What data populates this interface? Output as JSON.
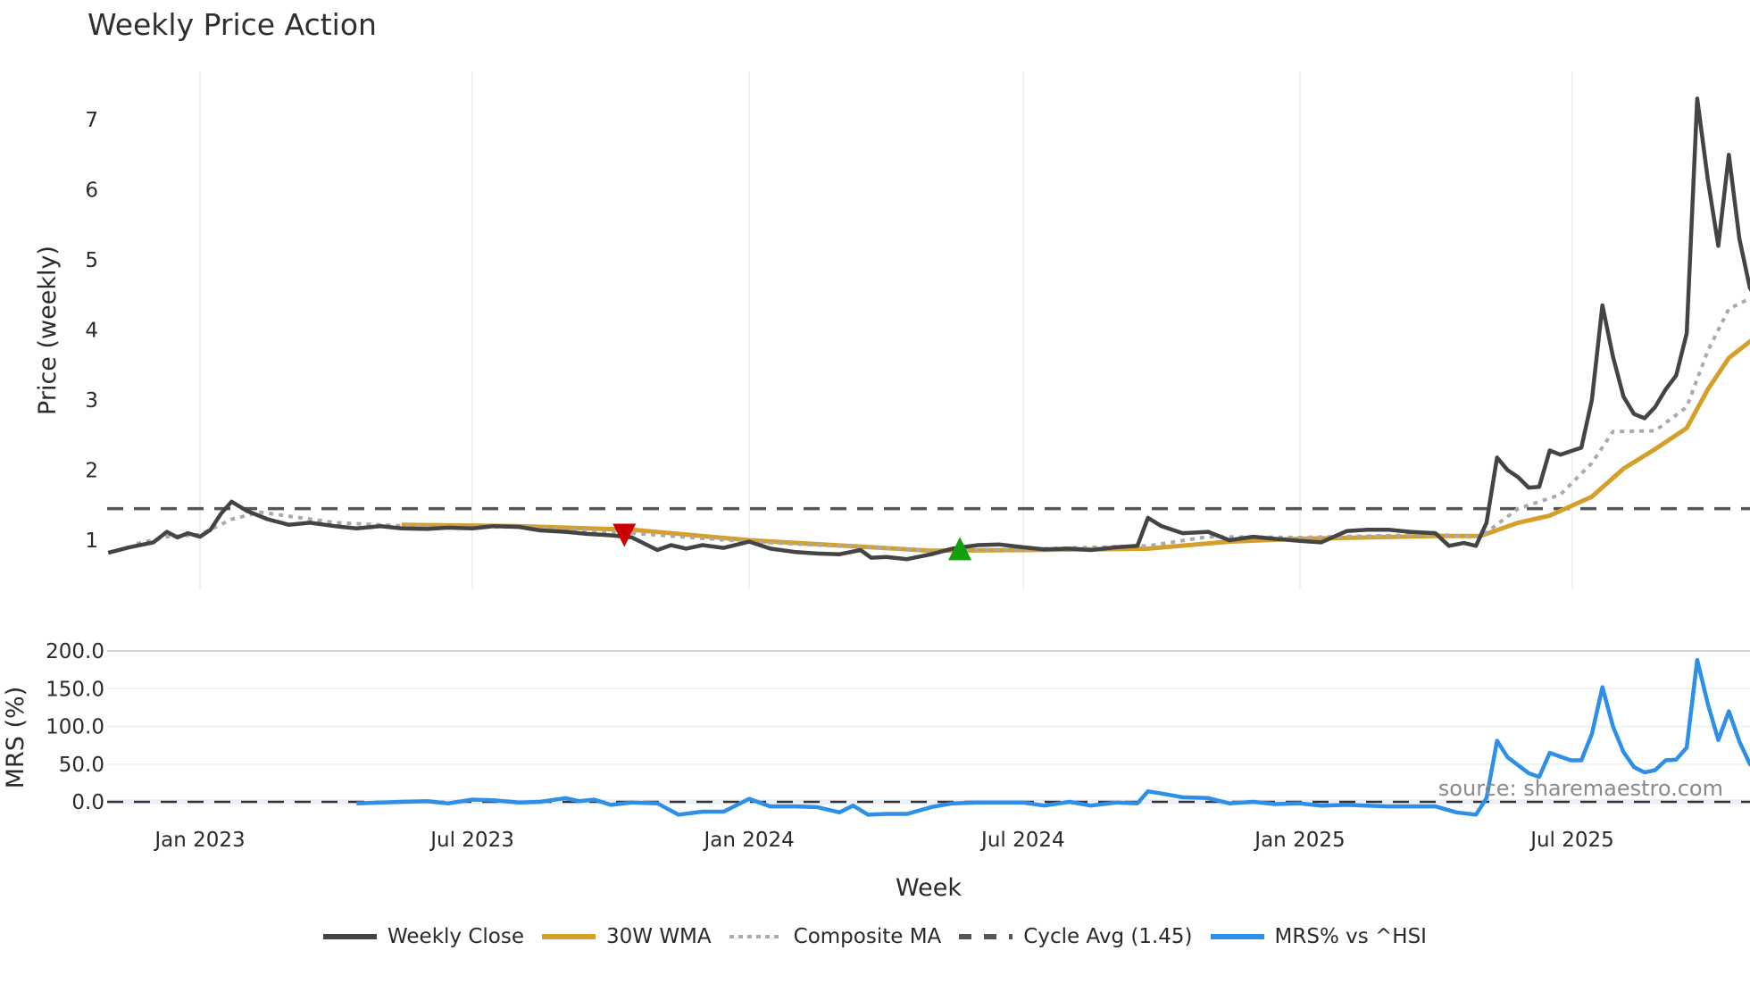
{
  "title": "Weekly Price Action",
  "chart_data": [
    {
      "type": "line",
      "panel": "price",
      "title": "Weekly Price Action",
      "xlabel": "Week",
      "ylabel": "Price (weekly)",
      "ylim": [
        0.3,
        7.7
      ],
      "yticks": [
        1,
        2,
        3,
        4,
        5,
        6,
        7
      ],
      "xticks": [
        "Jan 2023",
        "Jul 2023",
        "Jan 2024",
        "Jul 2024",
        "Jan 2025",
        "Jul 2025"
      ],
      "grid": "vertical only",
      "series": [
        {
          "name": "Weekly Close",
          "color": "#444444",
          "style": "solid",
          "points": [
            [
              "2022-11-01",
              0.82
            ],
            [
              "2022-11-15",
              0.9
            ],
            [
              "2022-12-01",
              0.97
            ],
            [
              "2022-12-10",
              1.12
            ],
            [
              "2022-12-17",
              1.04
            ],
            [
              "2022-12-24",
              1.1
            ],
            [
              "2023-01-01",
              1.05
            ],
            [
              "2023-01-08",
              1.15
            ],
            [
              "2023-01-15",
              1.38
            ],
            [
              "2023-01-22",
              1.55
            ],
            [
              "2023-02-01",
              1.42
            ],
            [
              "2023-02-15",
              1.3
            ],
            [
              "2023-03-01",
              1.22
            ],
            [
              "2023-03-15",
              1.25
            ],
            [
              "2023-04-01",
              1.2
            ],
            [
              "2023-04-15",
              1.17
            ],
            [
              "2023-05-01",
              1.2
            ],
            [
              "2023-05-15",
              1.17
            ],
            [
              "2023-06-01",
              1.16
            ],
            [
              "2023-06-15",
              1.18
            ],
            [
              "2023-07-01",
              1.17
            ],
            [
              "2023-07-15",
              1.2
            ],
            [
              "2023-08-01",
              1.19
            ],
            [
              "2023-08-15",
              1.14
            ],
            [
              "2023-09-01",
              1.12
            ],
            [
              "2023-09-15",
              1.09
            ],
            [
              "2023-10-01",
              1.07
            ],
            [
              "2023-10-15",
              1.04
            ],
            [
              "2023-11-01",
              0.86
            ],
            [
              "2023-11-10",
              0.93
            ],
            [
              "2023-11-20",
              0.88
            ],
            [
              "2023-12-01",
              0.93
            ],
            [
              "2023-12-15",
              0.89
            ],
            [
              "2024-01-01",
              0.98
            ],
            [
              "2024-01-15",
              0.88
            ],
            [
              "2024-02-01",
              0.83
            ],
            [
              "2024-02-15",
              0.81
            ],
            [
              "2024-03-01",
              0.8
            ],
            [
              "2024-03-15",
              0.86
            ],
            [
              "2024-03-22",
              0.75
            ],
            [
              "2024-04-01",
              0.76
            ],
            [
              "2024-04-15",
              0.73
            ],
            [
              "2024-05-01",
              0.8
            ],
            [
              "2024-05-15",
              0.88
            ],
            [
              "2024-06-01",
              0.93
            ],
            [
              "2024-06-15",
              0.94
            ],
            [
              "2024-07-01",
              0.9
            ],
            [
              "2024-07-15",
              0.87
            ],
            [
              "2024-08-01",
              0.88
            ],
            [
              "2024-08-15",
              0.86
            ],
            [
              "2024-09-01",
              0.9
            ],
            [
              "2024-09-15",
              0.92
            ],
            [
              "2024-09-22",
              1.32
            ],
            [
              "2024-10-01",
              1.2
            ],
            [
              "2024-10-15",
              1.1
            ],
            [
              "2024-11-01",
              1.12
            ],
            [
              "2024-11-15",
              1.0
            ],
            [
              "2024-12-01",
              1.05
            ],
            [
              "2024-12-15",
              1.02
            ],
            [
              "2025-01-01",
              0.99
            ],
            [
              "2025-01-15",
              0.97
            ],
            [
              "2025-02-01",
              1.13
            ],
            [
              "2025-02-15",
              1.15
            ],
            [
              "2025-03-01",
              1.15
            ],
            [
              "2025-03-15",
              1.12
            ],
            [
              "2025-04-01",
              1.1
            ],
            [
              "2025-04-10",
              0.92
            ],
            [
              "2025-04-20",
              0.96
            ],
            [
              "2025-04-28",
              0.92
            ],
            [
              "2025-05-05",
              1.25
            ],
            [
              "2025-05-12",
              2.18
            ],
            [
              "2025-05-19",
              2.0
            ],
            [
              "2025-05-26",
              1.9
            ],
            [
              "2025-06-02",
              1.75
            ],
            [
              "2025-06-09",
              1.76
            ],
            [
              "2025-06-16",
              2.28
            ],
            [
              "2025-06-23",
              2.22
            ],
            [
              "2025-06-30",
              2.27
            ],
            [
              "2025-07-07",
              2.32
            ],
            [
              "2025-07-14",
              3.0
            ],
            [
              "2025-07-21",
              4.35
            ],
            [
              "2025-07-28",
              3.62
            ],
            [
              "2025-08-04",
              3.05
            ],
            [
              "2025-08-11",
              2.8
            ],
            [
              "2025-08-18",
              2.74
            ],
            [
              "2025-08-25",
              2.9
            ],
            [
              "2025-09-01",
              3.15
            ],
            [
              "2025-09-08",
              3.35
            ],
            [
              "2025-09-15",
              3.95
            ],
            [
              "2025-09-22",
              7.3
            ],
            [
              "2025-09-29",
              6.15
            ],
            [
              "2025-10-06",
              5.2
            ],
            [
              "2025-10-13",
              6.5
            ],
            [
              "2025-10-20",
              5.3
            ],
            [
              "2025-10-27",
              4.6
            ],
            [
              "2025-11-03",
              4.35
            ]
          ]
        },
        {
          "name": "30W WMA",
          "color": "#D4A02A",
          "style": "solid",
          "points": [
            [
              "2023-05-15",
              1.22
            ],
            [
              "2023-08-01",
              1.2
            ],
            [
              "2023-10-15",
              1.15
            ],
            [
              "2024-01-01",
              1.0
            ],
            [
              "2024-05-01",
              0.85
            ],
            [
              "2024-07-01",
              0.86
            ],
            [
              "2024-09-22",
              0.88
            ],
            [
              "2024-11-15",
              0.98
            ],
            [
              "2025-01-01",
              1.02
            ],
            [
              "2025-04-01",
              1.06
            ],
            [
              "2025-05-01",
              1.06
            ],
            [
              "2025-05-26",
              1.25
            ],
            [
              "2025-06-16",
              1.35
            ],
            [
              "2025-07-14",
              1.62
            ],
            [
              "2025-08-04",
              2.02
            ],
            [
              "2025-08-25",
              2.3
            ],
            [
              "2025-09-15",
              2.6
            ],
            [
              "2025-09-29",
              3.15
            ],
            [
              "2025-10-13",
              3.6
            ],
            [
              "2025-11-03",
              3.95
            ]
          ]
        },
        {
          "name": "Composite MA",
          "color": "#AAAAAA",
          "style": "dotted",
          "points": [
            [
              "2022-11-20",
              0.95
            ],
            [
              "2022-12-10",
              1.05
            ],
            [
              "2023-01-01",
              1.08
            ],
            [
              "2023-01-22",
              1.3
            ],
            [
              "2023-02-10",
              1.4
            ],
            [
              "2023-04-01",
              1.25
            ],
            [
              "2023-06-01",
              1.19
            ],
            [
              "2023-08-01",
              1.19
            ],
            [
              "2023-10-15",
              1.1
            ],
            [
              "2024-01-01",
              0.98
            ],
            [
              "2024-05-01",
              0.85
            ],
            [
              "2024-07-01",
              0.87
            ],
            [
              "2024-09-22",
              0.92
            ],
            [
              "2024-11-01",
              1.05
            ],
            [
              "2025-01-01",
              1.04
            ],
            [
              "2025-04-01",
              1.08
            ],
            [
              "2025-05-01",
              1.05
            ],
            [
              "2025-05-26",
              1.45
            ],
            [
              "2025-06-23",
              1.65
            ],
            [
              "2025-07-14",
              2.1
            ],
            [
              "2025-07-28",
              2.55
            ],
            [
              "2025-08-25",
              2.56
            ],
            [
              "2025-09-15",
              2.9
            ],
            [
              "2025-09-29",
              3.7
            ],
            [
              "2025-10-13",
              4.3
            ],
            [
              "2025-10-27",
              4.45
            ],
            [
              "2025-11-03",
              4.35
            ]
          ]
        },
        {
          "name": "Cycle Avg (1.45)",
          "color": "#555555",
          "style": "dashed",
          "constant": 1.45
        }
      ],
      "markers": [
        {
          "type": "sell",
          "shape": "triangle-down",
          "color": "#CC0000",
          "date": "2023-10-10",
          "value": 1.07
        },
        {
          "type": "buy",
          "shape": "triangle-up",
          "color": "#12A012",
          "date": "2024-05-20",
          "value": 0.88
        }
      ]
    },
    {
      "type": "line",
      "panel": "mrs",
      "ylabel": "MRS (%)",
      "ylim": [
        -25,
        205
      ],
      "yticks": [
        "0.0",
        "50.0",
        "100.0",
        "150.0",
        "200.0"
      ],
      "grid": "horizontal",
      "reference_line": {
        "value": 0,
        "style": "dashed",
        "color": "#333333"
      },
      "series": [
        {
          "name": "MRS% vs ^HSI",
          "color": "#2E8FE8",
          "style": "solid",
          "points": [
            [
              "2023-04-15",
              -2
            ],
            [
              "2023-05-15",
              0
            ],
            [
              "2023-06-01",
              1
            ],
            [
              "2023-06-15",
              -2
            ],
            [
              "2023-07-01",
              3
            ],
            [
              "2023-07-15",
              2
            ],
            [
              "2023-08-01",
              -1
            ],
            [
              "2023-08-15",
              0
            ],
            [
              "2023-09-01",
              5
            ],
            [
              "2023-09-10",
              1
            ],
            [
              "2023-09-20",
              3
            ],
            [
              "2023-10-01",
              -4
            ],
            [
              "2023-10-15",
              -1
            ],
            [
              "2023-11-01",
              -2
            ],
            [
              "2023-11-15",
              -17
            ],
            [
              "2023-12-01",
              -13
            ],
            [
              "2023-12-15",
              -13
            ],
            [
              "2024-01-01",
              4
            ],
            [
              "2024-01-15",
              -6
            ],
            [
              "2024-02-01",
              -6
            ],
            [
              "2024-02-15",
              -7
            ],
            [
              "2024-03-01",
              -14
            ],
            [
              "2024-03-10",
              -5
            ],
            [
              "2024-03-20",
              -17
            ],
            [
              "2024-04-01",
              -16
            ],
            [
              "2024-04-15",
              -16
            ],
            [
              "2024-05-01",
              -7
            ],
            [
              "2024-05-15",
              -2
            ],
            [
              "2024-06-01",
              -1
            ],
            [
              "2024-07-01",
              -1
            ],
            [
              "2024-07-15",
              -5
            ],
            [
              "2024-08-01",
              0
            ],
            [
              "2024-08-15",
              -5
            ],
            [
              "2024-09-01",
              -1
            ],
            [
              "2024-09-15",
              -2
            ],
            [
              "2024-09-22",
              14
            ],
            [
              "2024-10-01",
              11
            ],
            [
              "2024-10-15",
              6
            ],
            [
              "2024-11-01",
              5
            ],
            [
              "2024-11-15",
              -2
            ],
            [
              "2024-12-01",
              0
            ],
            [
              "2024-12-15",
              -3
            ],
            [
              "2025-01-01",
              -2
            ],
            [
              "2025-01-15",
              -5
            ],
            [
              "2025-02-01",
              -4
            ],
            [
              "2025-03-01",
              -6
            ],
            [
              "2025-04-01",
              -6
            ],
            [
              "2025-04-15",
              -14
            ],
            [
              "2025-04-28",
              -17
            ],
            [
              "2025-05-05",
              5
            ],
            [
              "2025-05-12",
              81
            ],
            [
              "2025-05-19",
              59
            ],
            [
              "2025-06-02",
              38
            ],
            [
              "2025-06-09",
              33
            ],
            [
              "2025-06-16",
              65
            ],
            [
              "2025-06-30",
              55
            ],
            [
              "2025-07-07",
              55
            ],
            [
              "2025-07-14",
              90
            ],
            [
              "2025-07-21",
              152
            ],
            [
              "2025-07-28",
              100
            ],
            [
              "2025-08-04",
              66
            ],
            [
              "2025-08-11",
              46
            ],
            [
              "2025-08-18",
              39
            ],
            [
              "2025-08-25",
              42
            ],
            [
              "2025-09-01",
              55
            ],
            [
              "2025-09-08",
              56
            ],
            [
              "2025-09-15",
              72
            ],
            [
              "2025-09-22",
              188
            ],
            [
              "2025-09-29",
              130
            ],
            [
              "2025-10-06",
              82
            ],
            [
              "2025-10-13",
              120
            ],
            [
              "2025-10-20",
              80
            ],
            [
              "2025-10-27",
              50
            ],
            [
              "2025-11-03",
              38
            ]
          ]
        }
      ]
    }
  ],
  "axes": {
    "price_ylabel": "Price (weekly)",
    "mrs_ylabel": "MRS (%)",
    "xlabel": "Week",
    "price_yticks": [
      "1",
      "2",
      "3",
      "4",
      "5",
      "6",
      "7"
    ],
    "mrs_yticks": [
      "200.0",
      "150.0",
      "100.0",
      "50.0",
      "0.0"
    ],
    "xticks": [
      "Jan 2023",
      "Jul 2023",
      "Jan 2024",
      "Jul 2024",
      "Jan 2025",
      "Jul 2025"
    ]
  },
  "source_text": "source: sharemaestro.com",
  "legend": [
    {
      "label": "Weekly Close",
      "color": "#444444",
      "style": "solid"
    },
    {
      "label": "30W WMA",
      "color": "#D4A02A",
      "style": "solid"
    },
    {
      "label": "Composite MA",
      "color": "#AAAAAA",
      "style": "dotted"
    },
    {
      "label": "Cycle Avg (1.45)",
      "color": "#555555",
      "style": "dashed"
    },
    {
      "label": "MRS% vs ^HSI",
      "color": "#2E8FE8",
      "style": "solid"
    }
  ]
}
